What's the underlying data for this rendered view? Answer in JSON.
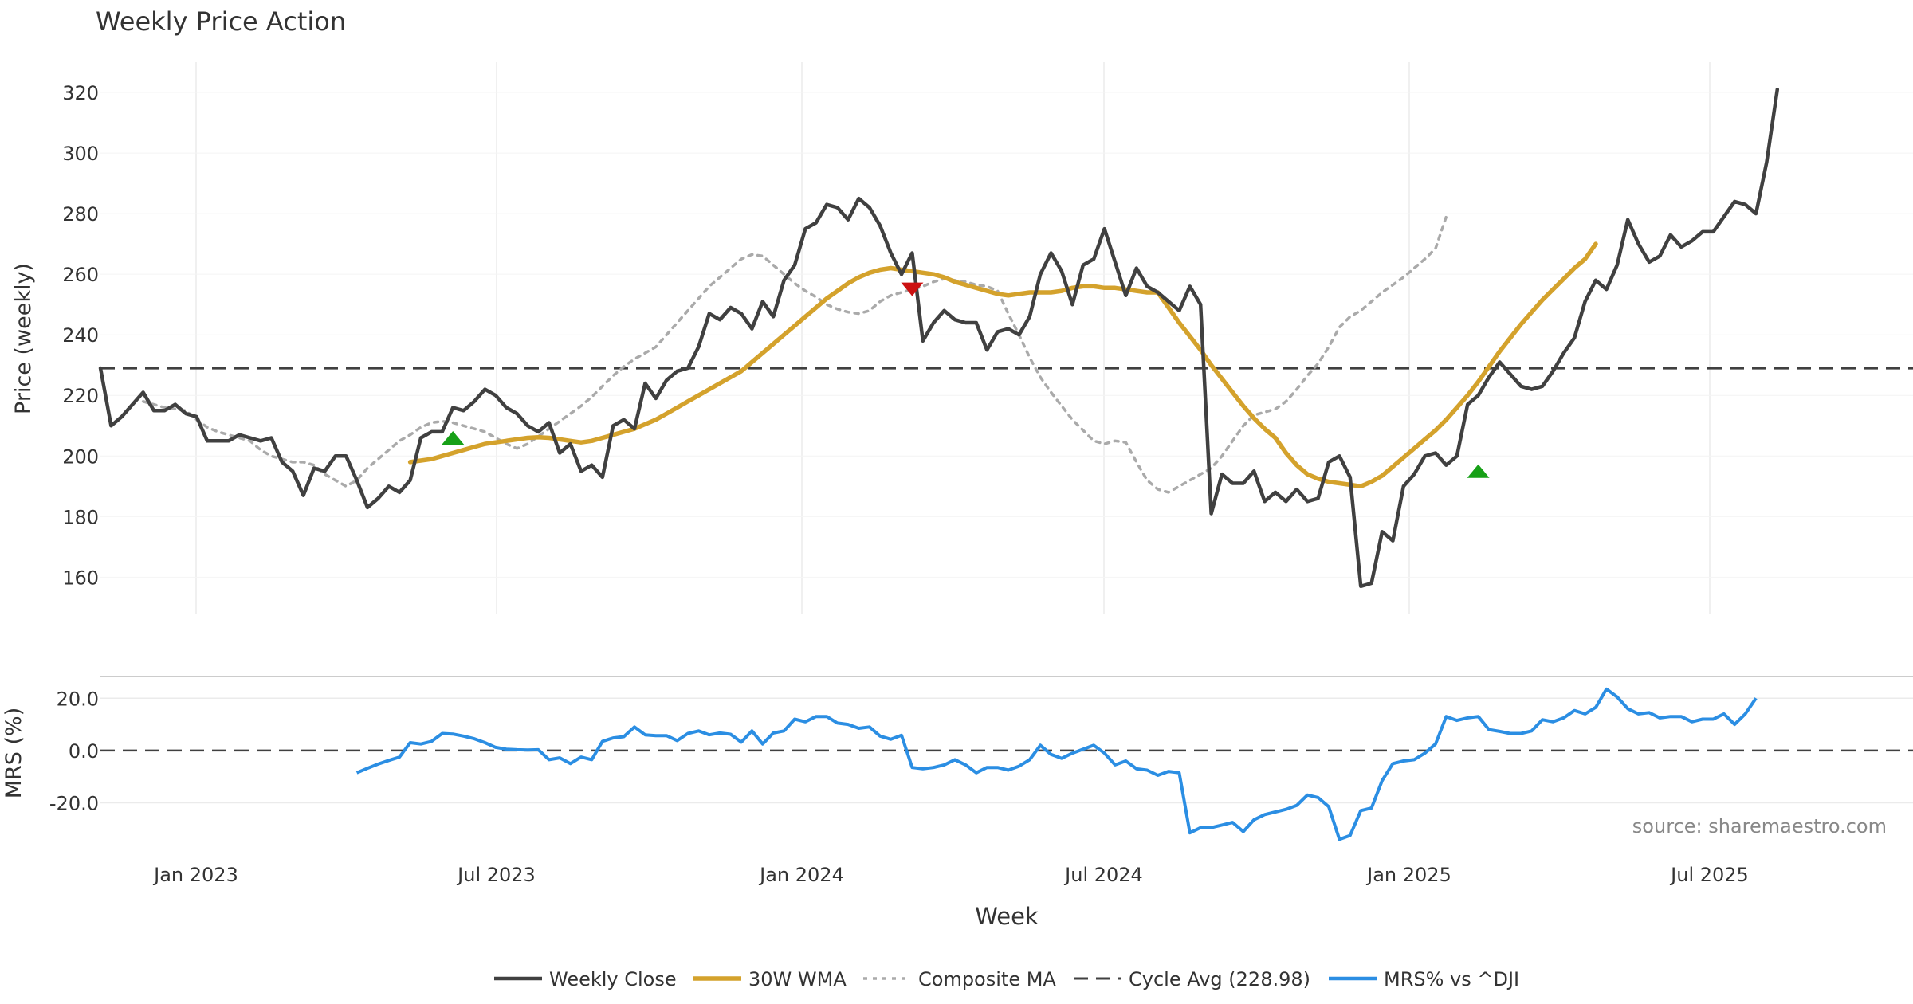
{
  "chart_data": {
    "type": "line",
    "title": "Weekly Price Action",
    "xlabel": "Week",
    "x_ticks": [
      "Jan 2023",
      "Jul 2023",
      "Jan 2024",
      "Jul 2024",
      "Jan 2025",
      "Jul 2025"
    ],
    "source": "source: sharemaestro.com",
    "colors": {
      "close": "#404040",
      "wma": "#d4a22c",
      "composite": "#aaaaaa",
      "cycle": "#404040",
      "mrs": "#2b8ee3",
      "buy": "#17a017",
      "sell": "#cc1111",
      "grid": "#ebebeb"
    },
    "price_panel": {
      "ylabel": "Price (weekly)",
      "ylim": [
        148,
        330
      ],
      "y_ticks": [
        160,
        180,
        200,
        220,
        240,
        260,
        280,
        300,
        320
      ],
      "cycle_avg": 228.98,
      "series": [
        {
          "name": "Weekly Close",
          "values": [
            229,
            210,
            213,
            217,
            221,
            215,
            215,
            217,
            214,
            213,
            205,
            205,
            205,
            207,
            206,
            205,
            206,
            198,
            195,
            187,
            196,
            195,
            200,
            200,
            192,
            183,
            186,
            190,
            188,
            192,
            206,
            208,
            208,
            216,
            215,
            218,
            222,
            220,
            216,
            214,
            210,
            208,
            211,
            201,
            204,
            195,
            197,
            193,
            210,
            212,
            209,
            224,
            219,
            225,
            228,
            229,
            236,
            247,
            245,
            249,
            247,
            242,
            251,
            246,
            258,
            263,
            275,
            277,
            283,
            282,
            278,
            285,
            282,
            276,
            267,
            260,
            267,
            238,
            244,
            248,
            245,
            244,
            244,
            235,
            241,
            242,
            240,
            246,
            260,
            267,
            261,
            250,
            263,
            265,
            275,
            264,
            253,
            262,
            256,
            254,
            251,
            248,
            256,
            250,
            181,
            194,
            191,
            191,
            195,
            185,
            188,
            185,
            189,
            185,
            186,
            198,
            200,
            193,
            157,
            158,
            175,
            172,
            190,
            194,
            200,
            201,
            197,
            200,
            217,
            220,
            226,
            231,
            227,
            223,
            222,
            223,
            228,
            234,
            239,
            251,
            258,
            255,
            263,
            278,
            270,
            264,
            266,
            273,
            269,
            271,
            274,
            274,
            279,
            284,
            283,
            280,
            297,
            321
          ]
        },
        {
          "name": "30W WMA",
          "start_index": 29,
          "values": [
            198,
            198.5,
            199,
            200,
            201,
            202,
            203,
            204,
            204.5,
            205,
            205.5,
            206,
            206.2,
            206,
            205.5,
            205,
            204.5,
            205,
            206,
            207,
            208,
            209,
            210.5,
            212,
            214,
            216,
            218,
            220,
            222,
            224,
            226,
            228,
            231,
            234,
            237,
            240,
            243,
            246,
            249,
            252,
            254.5,
            257,
            259,
            260.5,
            261.5,
            262,
            261.5,
            261,
            260.5,
            260,
            259,
            257.5,
            256.5,
            255.5,
            254.5,
            253.5,
            253,
            253.5,
            254,
            254,
            254,
            254.5,
            255.5,
            256,
            256,
            255.5,
            255.5,
            255,
            254.5,
            254,
            254,
            249,
            244,
            239.5,
            235,
            230,
            225.5,
            221,
            216.5,
            212.5,
            209,
            206,
            201,
            197,
            194,
            192.5,
            191.5,
            191,
            190.5,
            190,
            191.5,
            193.5,
            196.5,
            199.5,
            202.5,
            205.5,
            208.5,
            212,
            216,
            220,
            224.5,
            229.5,
            234.5,
            239,
            243.5,
            247.5,
            251.5,
            255,
            258.5,
            262,
            265,
            270
          ]
        },
        {
          "name": "Composite MA",
          "start_index": 4,
          "values": [
            218,
            217,
            216,
            215.5,
            215,
            212,
            209.5,
            208,
            207,
            206,
            205,
            202,
            200,
            199,
            198,
            198,
            197,
            194,
            192,
            190,
            192,
            196,
            199,
            202,
            205,
            207,
            209.5,
            211,
            211.5,
            211,
            210,
            209,
            208,
            206,
            204,
            202.5,
            204,
            206.5,
            209,
            211.5,
            214,
            216.5,
            219.5,
            223,
            226.5,
            229.5,
            232,
            234,
            236,
            240,
            244,
            248,
            252,
            256,
            259,
            262,
            265,
            266.5,
            266,
            263,
            260,
            257,
            254.5,
            252.5,
            250,
            248.5,
            247.5,
            247,
            248,
            251,
            253,
            254,
            255,
            256,
            257.5,
            258.5,
            258,
            257.5,
            256.5,
            256,
            254.5,
            247,
            240,
            232.5,
            226,
            221,
            216.5,
            212,
            208.5,
            205,
            204,
            205,
            204.5,
            198,
            192,
            189,
            188,
            190,
            192,
            194,
            196,
            200,
            205,
            210,
            213.5,
            214.5,
            215.5,
            218,
            222,
            226.5,
            230.5,
            236,
            242.5,
            246,
            248,
            251,
            254,
            256.5,
            259,
            262,
            265,
            268.5,
            279
          ]
        }
      ],
      "signals": [
        {
          "type": "buy",
          "index": 33,
          "value": 206
        },
        {
          "type": "sell",
          "index": 76,
          "value": 255
        },
        {
          "type": "buy",
          "index": 129,
          "value": 195
        }
      ]
    },
    "mrs_panel": {
      "ylabel": "MRS (%)",
      "ylim": [
        -36,
        28
      ],
      "y_ticks": [
        "20.0",
        "0.0",
        "-20.0"
      ],
      "y_tick_values": [
        20,
        0,
        -20
      ],
      "series": [
        {
          "name": "MRS% vs ^DJI",
          "start_index": 24,
          "values": [
            -8.5,
            -6.8,
            -5.2,
            -3.8,
            -2.5,
            3,
            2.5,
            3.5,
            6.5,
            6.3,
            5.5,
            4.5,
            3,
            1.2,
            0.5,
            0.3,
            0.2,
            0.3,
            -3.5,
            -2.8,
            -5,
            -2.5,
            -3.5,
            3.5,
            4.8,
            5.3,
            9,
            6,
            5.7,
            5.7,
            3.8,
            6.5,
            7.5,
            6,
            6.7,
            6.2,
            3.2,
            7.5,
            2.5,
            6.7,
            7.5,
            12,
            11,
            13,
            13,
            10.5,
            10,
            8.5,
            9,
            5.5,
            4.3,
            5.8,
            -6.5,
            -7,
            -6.5,
            -5.5,
            -3.5,
            -5.5,
            -8.5,
            -6.5,
            -6.5,
            -7.5,
            -6,
            -3.5,
            2,
            -1.5,
            -3,
            -1,
            0.5,
            2,
            -1,
            -5.5,
            -4,
            -7,
            -7.5,
            -9.5,
            -8,
            -8.5,
            -31.5,
            -29.5,
            -29.5,
            -28.5,
            -27.5,
            -31,
            -26.5,
            -24.5,
            -23.5,
            -22.5,
            -21,
            -17,
            -18,
            -21.5,
            -34,
            -32.5,
            -23,
            -22,
            -11.5,
            -5,
            -4,
            -3.5,
            -1,
            2.5,
            13,
            11.5,
            12.5,
            13,
            8,
            7.3,
            6.5,
            6.5,
            7.5,
            11.8,
            11,
            12.5,
            15.3,
            14,
            16.5,
            23.5,
            20.5,
            16,
            14,
            14.5,
            12.5,
            13,
            13,
            11,
            12,
            12,
            14,
            10,
            14,
            20
          ]
        }
      ]
    },
    "legend": [
      "Weekly Close",
      "30W WMA",
      "Composite MA",
      "Cycle Avg (228.98)",
      "MRS% vs ^DJI"
    ]
  }
}
